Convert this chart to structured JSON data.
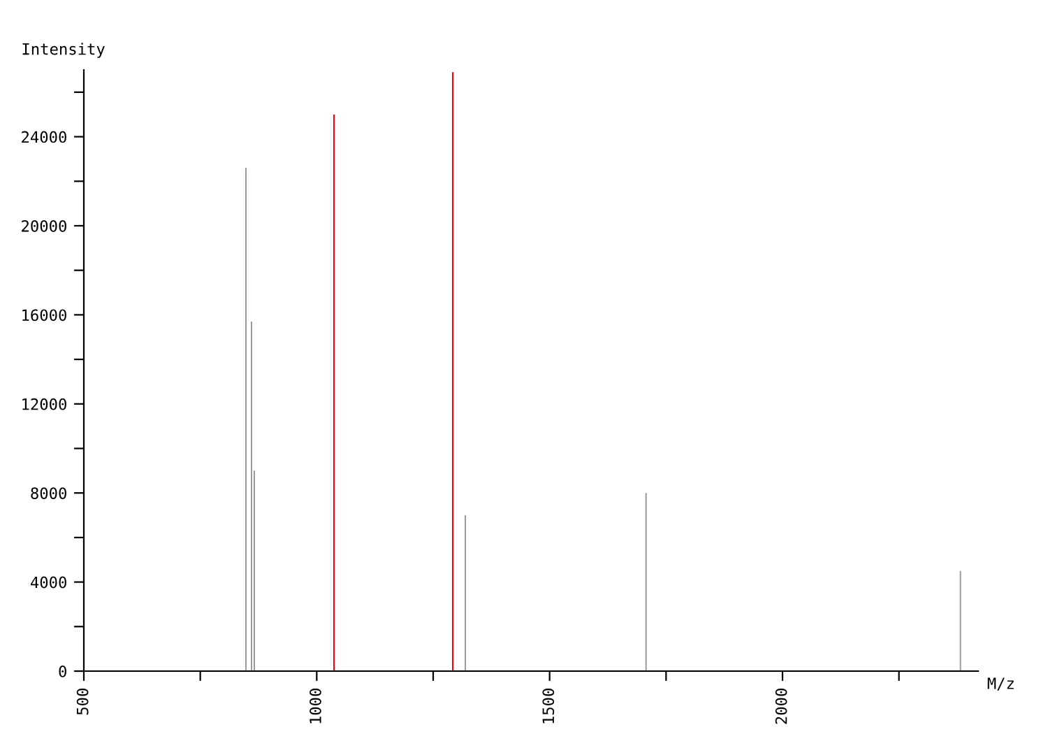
{
  "chart_data": {
    "type": "bar",
    "xlabel": "M/z",
    "ylabel": "Intensity",
    "x": [
      848,
      860,
      866,
      1037,
      1292,
      1319,
      1707,
      2382
    ],
    "values": [
      22600,
      15700,
      9000,
      25000,
      26900,
      7000,
      8000,
      4500
    ],
    "colors": [
      "#999999",
      "#999999",
      "#999999",
      "#ff0000",
      "#ff0000",
      "#999999",
      "#999999",
      "#999999"
    ],
    "xlim": [
      500,
      2420
    ],
    "xticks": [
      500,
      {
        "value": 750,
        "label": null
      },
      1000,
      {
        "value": 1250,
        "label": null
      },
      1500,
      {
        "value": 1750,
        "label": null
      },
      2000,
      {
        "value": 2250,
        "label": null
      }
    ],
    "ylim": [
      0,
      27000
    ],
    "yticks": [
      0,
      {
        "value": 2000,
        "label": null
      },
      4000,
      {
        "value": 6000,
        "label": null
      },
      8000,
      {
        "value": 10000,
        "label": null
      },
      12000,
      {
        "value": 14000,
        "label": null
      },
      16000,
      {
        "value": 18000,
        "label": null
      },
      20000,
      {
        "value": 22000,
        "label": null
      },
      24000,
      {
        "value": 26000,
        "label": null
      }
    ],
    "grid": false,
    "legend": false
  }
}
